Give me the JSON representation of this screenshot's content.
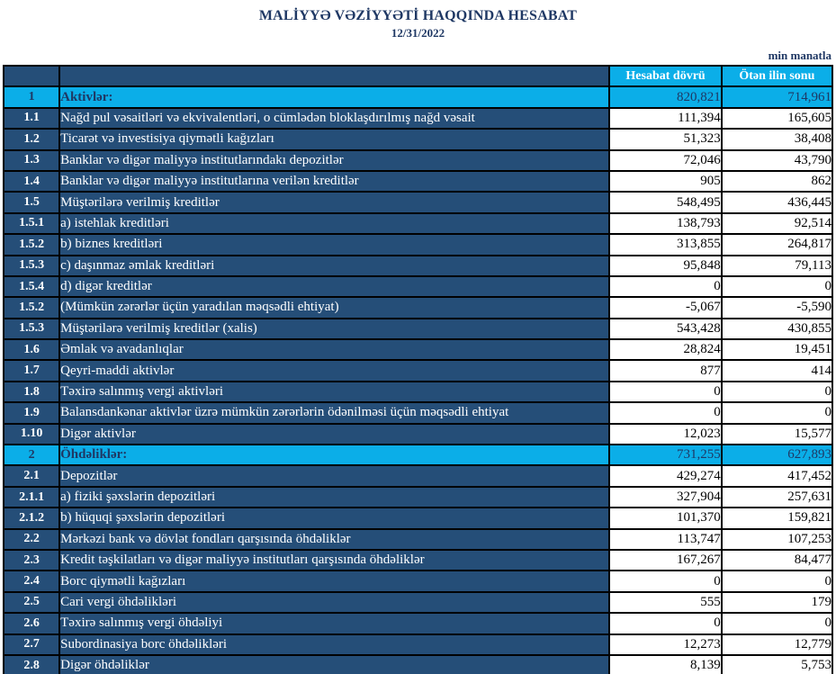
{
  "header": {
    "title": "MALİYYƏ VƏZİYYƏTİ HAQQINDA HESABAT",
    "date": "12/31/2022",
    "unit_note": "min manatla"
  },
  "table": {
    "col_headers": {
      "current": "Hesabat dövrü",
      "previous": "Ötən ilin sonu"
    },
    "rows": [
      {
        "no": "1",
        "label": "Aktivlər:",
        "current": "820,821",
        "previous": "714,961",
        "section": true
      },
      {
        "no": "1.1",
        "label": "Nağd pul vəsaitləri və  ekvivalentləri, o cümlədən bloklaşdırılmış nağd vəsait",
        "current": "111,394",
        "previous": "165,605",
        "section": false
      },
      {
        "no": "1.2",
        "label": "Ticarət və investisiya qiymətli kağızları",
        "current": "51,323",
        "previous": "38,408",
        "section": false
      },
      {
        "no": "1.3",
        "label": "Banklar və digər maliyyə institutlarındakı depozitlər",
        "current": "72,046",
        "previous": "43,790",
        "section": false
      },
      {
        "no": "1.4",
        "label": "Banklar və digər maliyyə institutlarına verilən kreditlər",
        "current": "905",
        "previous": "862",
        "section": false
      },
      {
        "no": "1.5",
        "label": "Müştərilərə verilmiş kreditlər",
        "current": "548,495",
        "previous": "436,445",
        "section": false
      },
      {
        "no": "1.5.1",
        "label": "a) istehlak kreditləri",
        "current": "138,793",
        "previous": "92,514",
        "section": false
      },
      {
        "no": "1.5.2",
        "label": "b) biznes kreditləri",
        "current": "313,855",
        "previous": "264,817",
        "section": false
      },
      {
        "no": "1.5.3",
        "label": "c) daşınmaz əmlak kreditləri",
        "current": "95,848",
        "previous": "79,113",
        "section": false
      },
      {
        "no": "1.5.4",
        "label": "d) digər kreditlər",
        "current": "0",
        "previous": "0",
        "section": false
      },
      {
        "no": "1.5.2",
        "label": "(Mümkün zərərlər üçün yaradılan məqsədli ehtiyat)",
        "current": "-5,067",
        "previous": "-5,590",
        "section": false
      },
      {
        "no": "1.5.3",
        "label": "Müştərilərə verilmiş kreditlər (xalis)",
        "current": "543,428",
        "previous": "430,855",
        "section": false
      },
      {
        "no": "1.6",
        "label": "Əmlak və avadanlıqlar",
        "current": "28,824",
        "previous": "19,451",
        "section": false
      },
      {
        "no": "1.7",
        "label": "Qeyri-maddi aktivlər",
        "current": "877",
        "previous": "414",
        "section": false
      },
      {
        "no": "1.8",
        "label": "Təxirə salınmış vergi aktivləri",
        "current": "0",
        "previous": "0",
        "section": false
      },
      {
        "no": "1.9",
        "label": "Balansdankənar aktivlər üzrə mümkün zərərlərin ödənilməsi üçün məqsədli ehtiyat",
        "current": "0",
        "previous": "0",
        "section": false
      },
      {
        "no": "1.10",
        "label": "Digər aktivlər",
        "current": "12,023",
        "previous": "15,577",
        "section": false
      },
      {
        "no": "2",
        "label": "Öhdəliklər:",
        "current": "731,255",
        "previous": "627,893",
        "section": true
      },
      {
        "no": "2.1",
        "label": "Depozitlər",
        "current": "429,274",
        "previous": "417,452",
        "section": false
      },
      {
        "no": "2.1.1",
        "label": "a) fiziki şəxslərin depozitləri",
        "current": "327,904",
        "previous": "257,631",
        "section": false
      },
      {
        "no": "2.1.2",
        "label": "b) hüquqi şəxslərin depozitləri",
        "current": "101,370",
        "previous": "159,821",
        "section": false
      },
      {
        "no": "2.2",
        "label": "Mərkəzi bank və dövlət fondları qarşısında öhdəliklər",
        "current": "113,747",
        "previous": "107,253",
        "section": false
      },
      {
        "no": "2.3",
        "label": "Kredit təşkilatları və digər maliyyə institutları qarşısında öhdəliklər",
        "current": "167,267",
        "previous": "84,477",
        "section": false
      },
      {
        "no": "2.4",
        "label": "Borc qiymətli kağızları",
        "current": "0",
        "previous": "0",
        "section": false
      },
      {
        "no": "2.5",
        "label": "Cari vergi öhdəlikləri",
        "current": "555",
        "previous": "179",
        "section": false
      },
      {
        "no": "2.6",
        "label": "Təxirə salınmış vergi öhdəliyi",
        "current": "0",
        "previous": "0",
        "section": false
      },
      {
        "no": "2.7",
        "label": "Subordinasiya borc öhdəlikləri",
        "current": "12,273",
        "previous": "12,779",
        "section": false
      },
      {
        "no": "2.8",
        "label": "Digər öhdəliklər",
        "current": "8,139",
        "previous": "5,753",
        "section": false
      }
    ]
  },
  "colors": {
    "navy_cell": "#254e78",
    "light_blue_cell": "#0baee8",
    "title_text": "#1f3864",
    "value_text": "#000000",
    "border": "#000000"
  }
}
